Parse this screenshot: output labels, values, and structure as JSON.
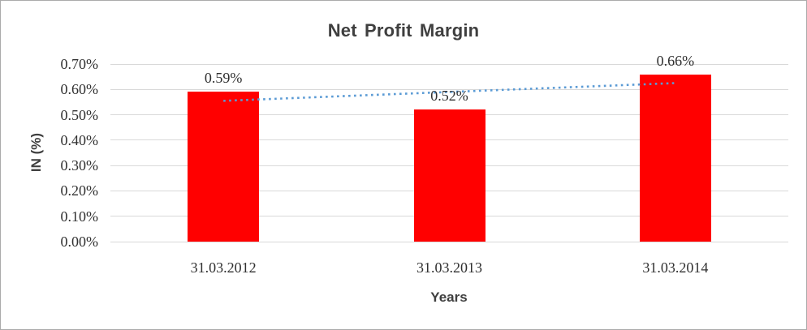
{
  "chart_data": {
    "type": "bar",
    "title": "Net Profit Margin",
    "xlabel": "Years",
    "ylabel": "IN (%)",
    "categories": [
      "31.03.2012",
      "31.03.2013",
      "31.03.2014"
    ],
    "series": [
      {
        "name": "Net Profit Margin",
        "values": [
          0.59,
          0.52,
          0.66
        ]
      }
    ],
    "data_labels": [
      "0.59%",
      "0.52%",
      "0.66%"
    ],
    "unit": "%",
    "ylim": [
      0,
      0.7
    ],
    "ytick_step": 0.1,
    "yticks": [
      {
        "value": 0.0,
        "label": "0.00%"
      },
      {
        "value": 0.1,
        "label": "0.10%"
      },
      {
        "value": 0.2,
        "label": "0.20%"
      },
      {
        "value": 0.3,
        "label": "0.30%"
      },
      {
        "value": 0.4,
        "label": "0.40%"
      },
      {
        "value": 0.5,
        "label": "0.50%"
      },
      {
        "value": 0.6,
        "label": "0.60%"
      },
      {
        "value": 0.7,
        "label": "0.70%"
      }
    ],
    "grid": true,
    "legend": "none",
    "bar_color": "#FF0000",
    "gridline_color": "#D9D9D9",
    "axis_text_color": "#303030",
    "title_color": "#3F3F3F",
    "trendline": {
      "type": "linear",
      "style": "dotted",
      "color": "#5B9BD5",
      "start_value": 0.555,
      "end_value": 0.625
    }
  }
}
